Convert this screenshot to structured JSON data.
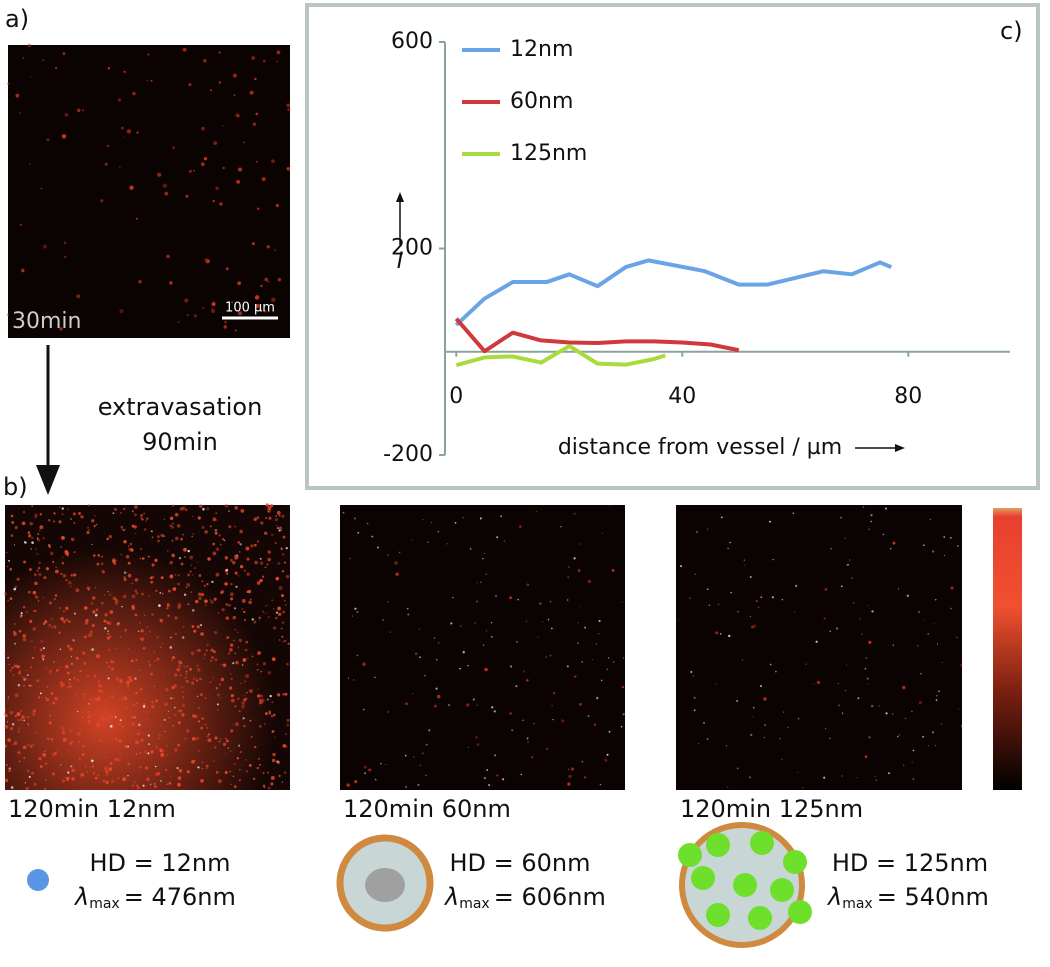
{
  "chart_data": {
    "type": "line",
    "panel_label": "c)",
    "ylabel": "I",
    "xlabel": "distance from vessel / µm",
    "xlim": [
      -2,
      98
    ],
    "ylim": [
      -200,
      600
    ],
    "xticks": [
      0,
      40,
      80
    ],
    "yticks": [
      -200,
      200,
      600
    ],
    "legend": "upper left",
    "series": [
      {
        "name": "12nm",
        "color": "#6aa3e6",
        "x": [
          0,
          5,
          10,
          16,
          20,
          25,
          30,
          34,
          44,
          50,
          55,
          65,
          70,
          75,
          77
        ],
        "values": [
          52,
          103,
          135,
          135,
          150,
          127,
          164,
          177,
          156,
          130,
          130,
          156,
          150,
          173,
          164
        ]
      },
      {
        "name": "60nm",
        "color": "#d0393b",
        "x": [
          0,
          5,
          10,
          15,
          20,
          25,
          30,
          35,
          40,
          45,
          50
        ],
        "values": [
          64,
          1,
          37,
          22,
          18,
          17,
          20,
          20,
          18,
          14,
          3
        ]
      },
      {
        "name": "125nm",
        "color": "#a8dc3c",
        "x": [
          0,
          5,
          10,
          15,
          20,
          25,
          30,
          35,
          37
        ],
        "values": [
          -26,
          -11,
          -9,
          -21,
          11,
          -23,
          -25,
          -14,
          -7
        ]
      }
    ]
  },
  "panel_a": {
    "label": "a)",
    "time": "30min",
    "scale_bar": "100 µm"
  },
  "step": {
    "line1": "extravasation",
    "line2": "90min"
  },
  "panel_b": {
    "label": "b)",
    "captions": [
      "120min 12nm",
      "120min 60nm",
      "120min 125nm"
    ]
  },
  "particles": [
    {
      "hd": "HD = 12nm",
      "lambda": "λ",
      "sub": "max",
      "wavelength": "= 476nm"
    },
    {
      "hd": "HD = 60nm",
      "lambda": "λ",
      "sub": "max",
      "wavelength": "= 606nm"
    },
    {
      "hd": "HD = 125nm",
      "lambda": "λ",
      "sub": "max",
      "wavelength": "= 540nm"
    }
  ]
}
